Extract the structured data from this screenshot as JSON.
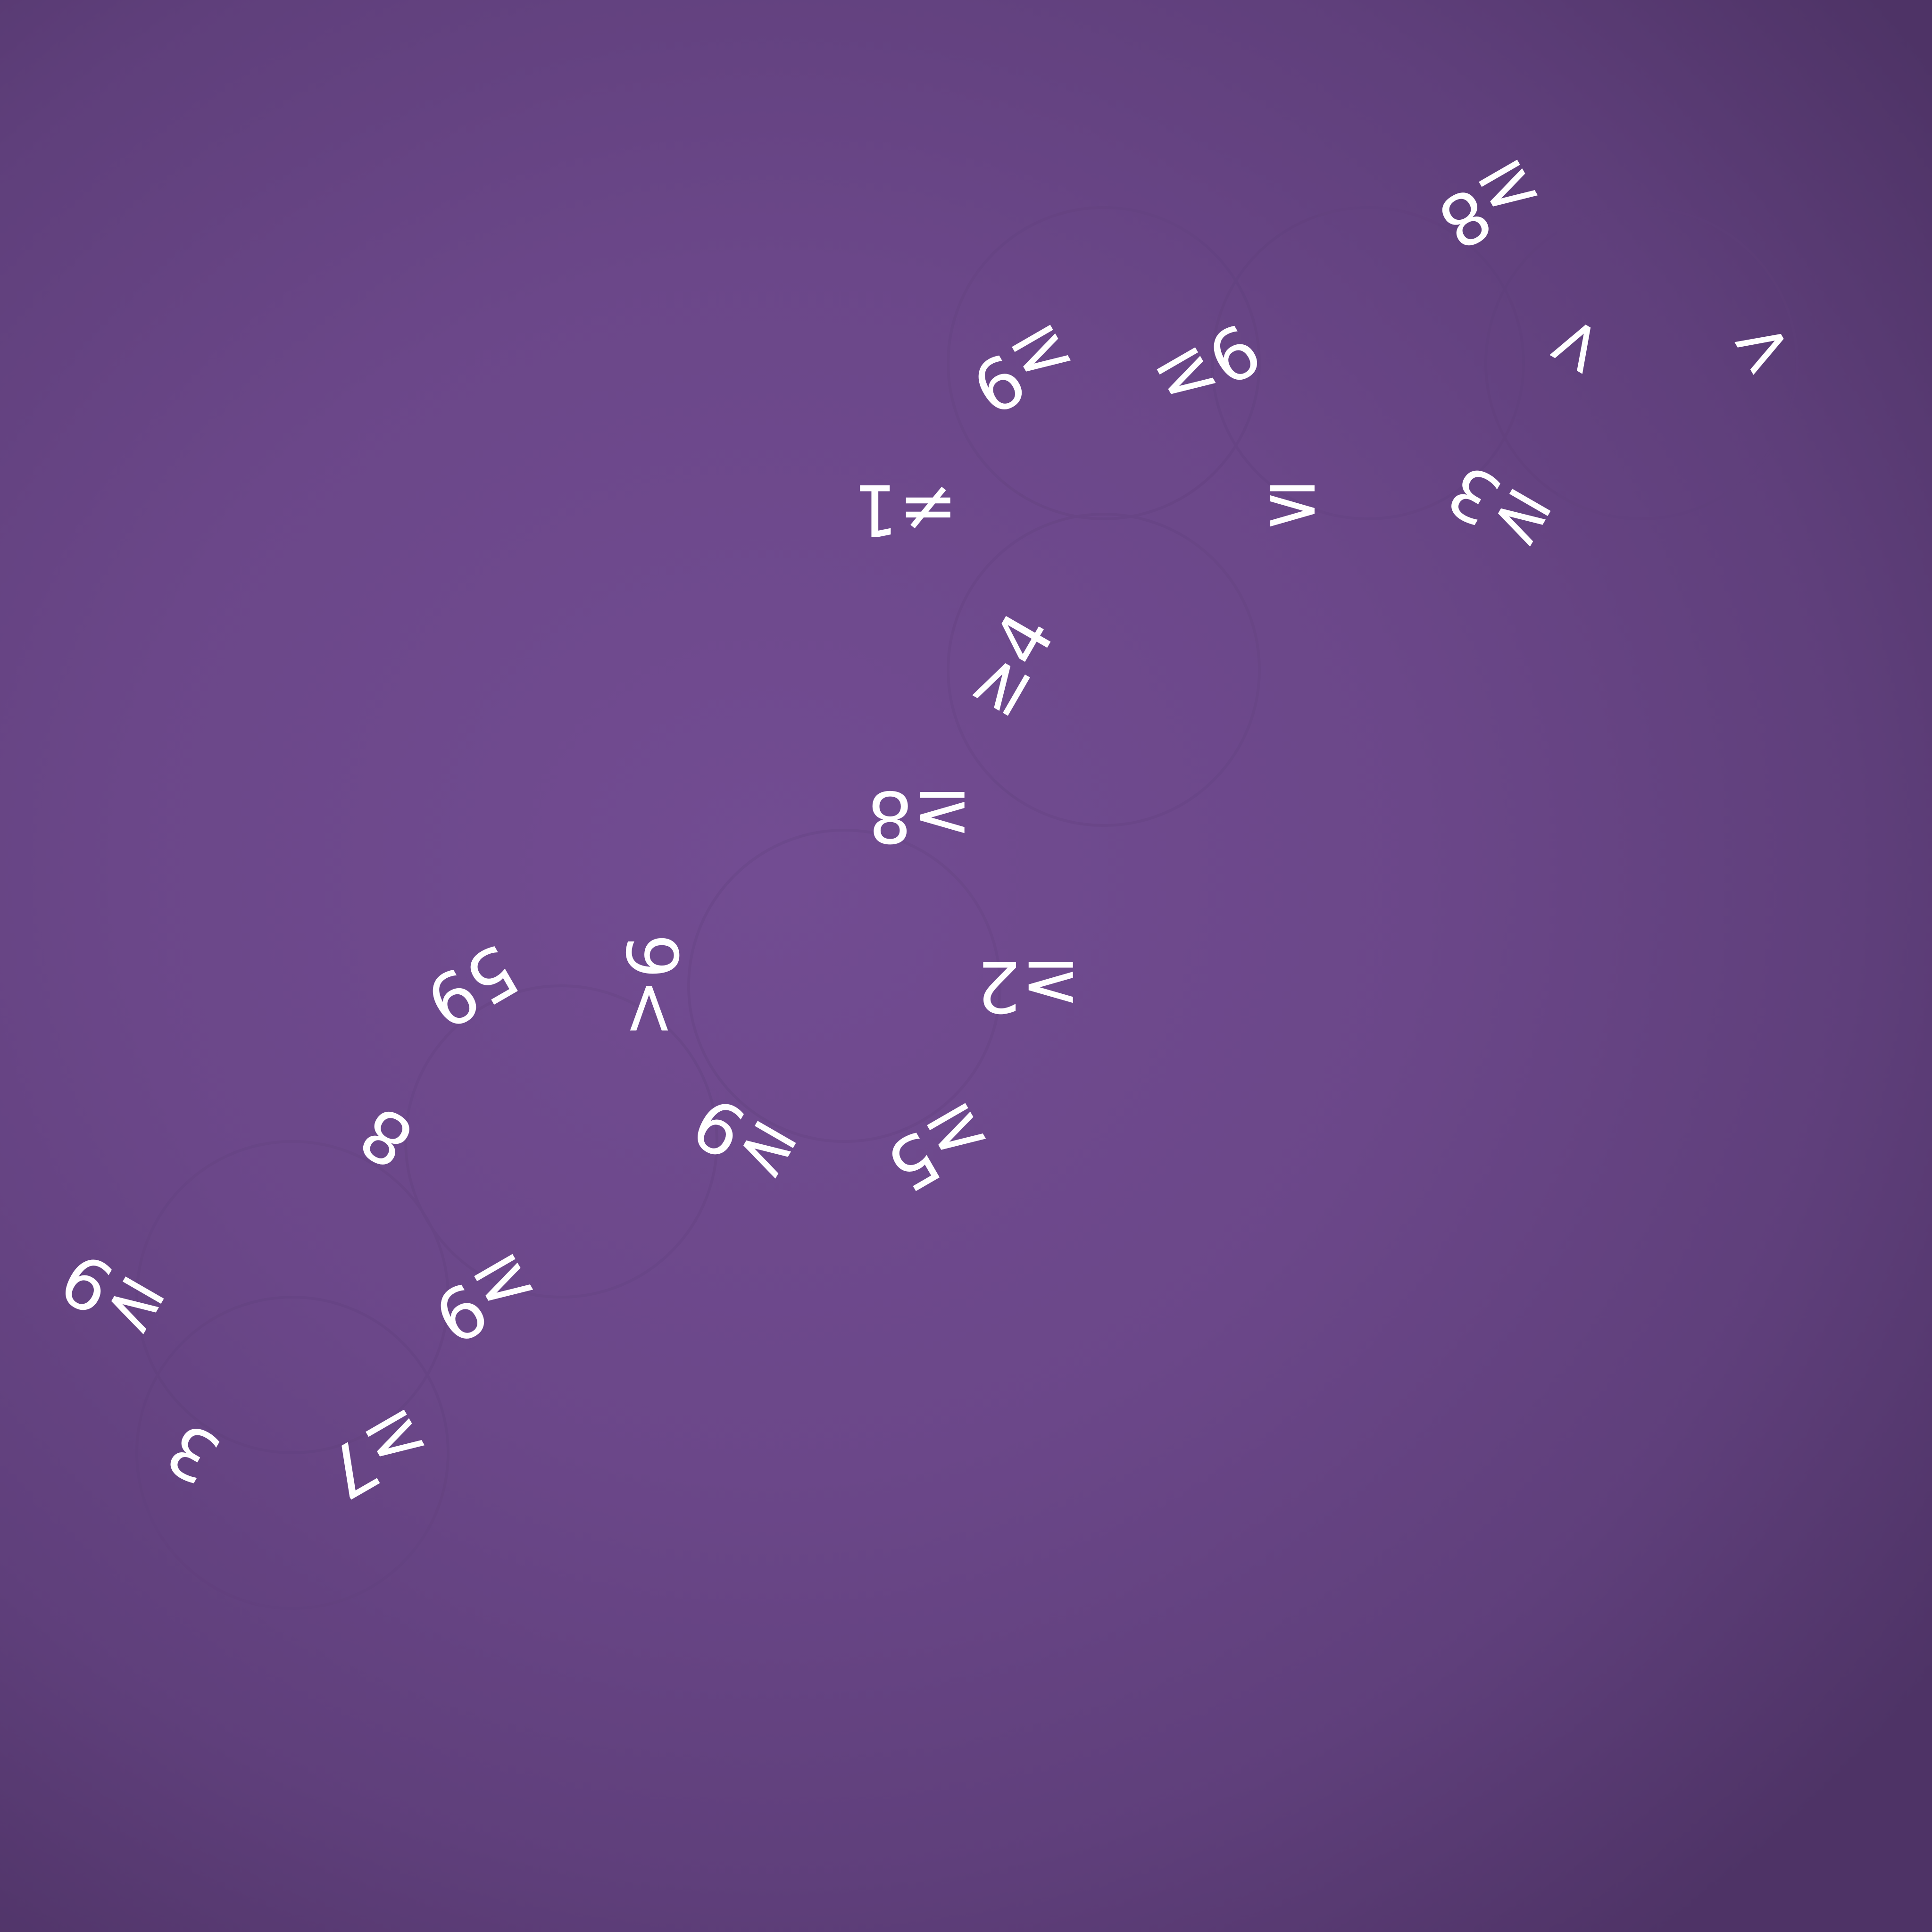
{
  "board": {
    "background_color": "#6d4a8c",
    "tile_color": "#ffffff",
    "tiles": [
      {
        "label": "≥8"
      },
      {
        "label": "<"
      },
      {
        "label": ">"
      },
      {
        "label": "≥9"
      },
      {
        "label": "9≥"
      },
      {
        "label": "≠1"
      },
      {
        "label": "≤"
      },
      {
        "label": "≥3"
      },
      {
        "label": "≥4"
      },
      {
        "label": "≥8"
      },
      {
        "label": "59"
      },
      {
        "label": "9<"
      },
      {
        "label": "≥2"
      },
      {
        "label": "8"
      },
      {
        "label": "≥9"
      },
      {
        "label": "≥5"
      },
      {
        "label": "≥9"
      },
      {
        "label": "≥9"
      },
      {
        "label": "3"
      },
      {
        "label": "≥7"
      }
    ]
  }
}
